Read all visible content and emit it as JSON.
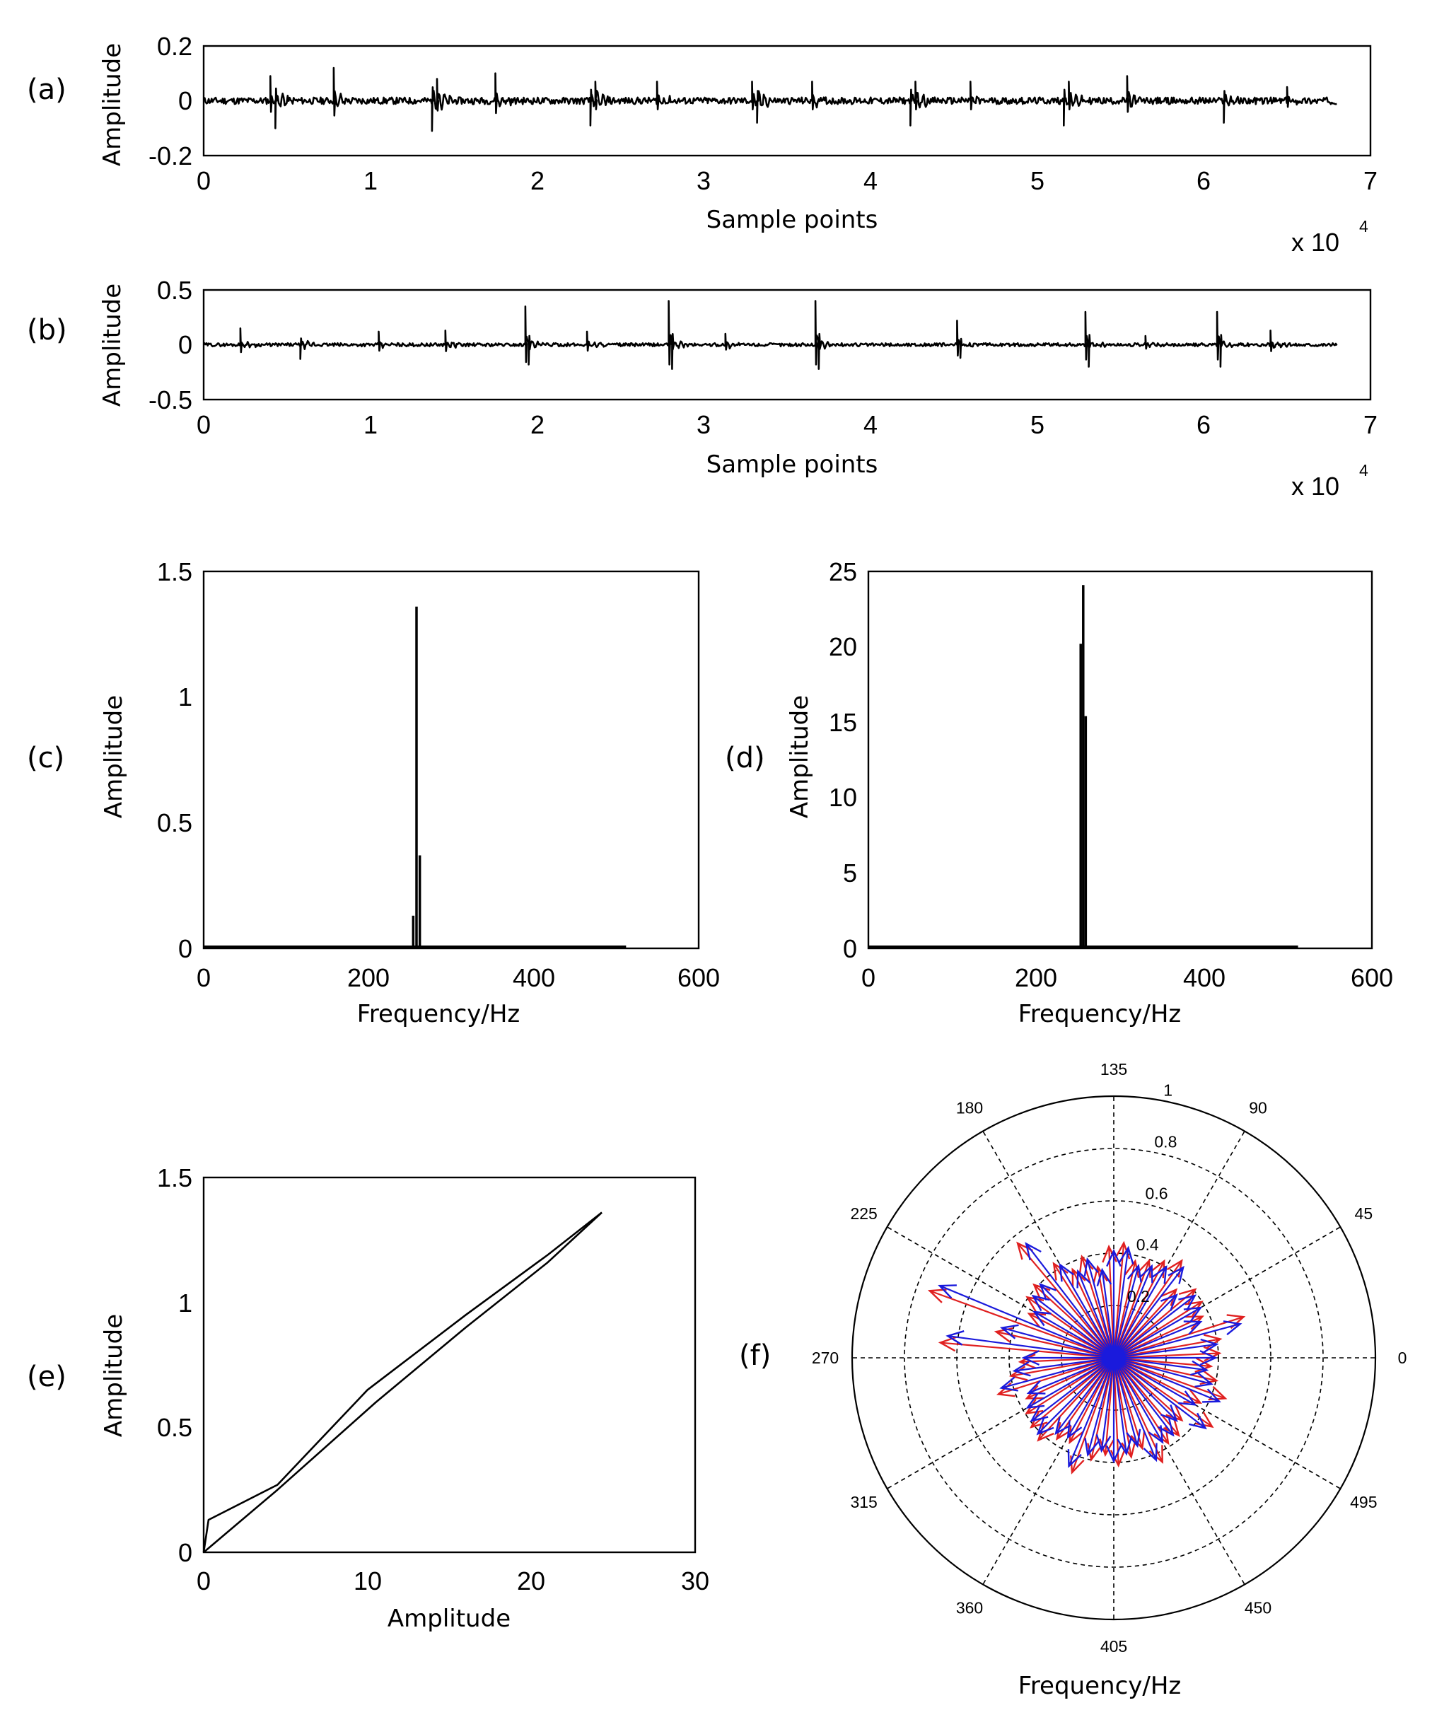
{
  "chart_data": [
    {
      "id": "a",
      "panel_label": "(a)",
      "type": "line",
      "title": "",
      "xlabel": "Sample points",
      "ylabel": "Amplitude",
      "xlim": [
        0,
        7
      ],
      "ylim": [
        -0.2,
        0.2
      ],
      "xticks": [
        "0",
        "1",
        "2",
        "3",
        "4",
        "5",
        "6",
        "7"
      ],
      "yticks": [
        "-0.2",
        "0",
        "0.2"
      ],
      "x_multiplier": "x 10",
      "x_exponent": "4",
      "x_end": 6.8,
      "spikes": [
        {
          "x": 0.4,
          "y": 0.09
        },
        {
          "x": 0.43,
          "y": -0.1
        },
        {
          "x": 0.78,
          "y": 0.12
        },
        {
          "x": 1.37,
          "y": -0.11
        },
        {
          "x": 1.4,
          "y": 0.08
        },
        {
          "x": 1.75,
          "y": 0.1
        },
        {
          "x": 2.32,
          "y": -0.09
        },
        {
          "x": 2.35,
          "y": 0.07
        },
        {
          "x": 2.72,
          "y": 0.07
        },
        {
          "x": 3.29,
          "y": 0.07
        },
        {
          "x": 3.32,
          "y": -0.08
        },
        {
          "x": 3.65,
          "y": 0.07
        },
        {
          "x": 4.24,
          "y": -0.09
        },
        {
          "x": 4.27,
          "y": 0.07
        },
        {
          "x": 4.6,
          "y": 0.07
        },
        {
          "x": 5.16,
          "y": -0.09
        },
        {
          "x": 5.19,
          "y": 0.07
        },
        {
          "x": 5.54,
          "y": 0.09
        },
        {
          "x": 6.12,
          "y": -0.08
        },
        {
          "x": 6.5,
          "y": 0.05
        }
      ]
    },
    {
      "id": "b",
      "panel_label": "(b)",
      "type": "line",
      "title": "",
      "xlabel": "Sample points",
      "ylabel": "Amplitude",
      "xlim": [
        0,
        7
      ],
      "ylim": [
        -0.5,
        0.5
      ],
      "xticks": [
        "0",
        "1",
        "2",
        "3",
        "4",
        "5",
        "6",
        "7"
      ],
      "yticks": [
        "-0.5",
        "0",
        "0.5"
      ],
      "x_multiplier": "x 10",
      "x_exponent": "4",
      "x_end": 6.8,
      "spikes": [
        {
          "x": 0.22,
          "y": 0.15
        },
        {
          "x": 0.58,
          "y": -0.13
        },
        {
          "x": 1.05,
          "y": 0.12
        },
        {
          "x": 1.45,
          "y": 0.13
        },
        {
          "x": 1.93,
          "y": 0.35
        },
        {
          "x": 1.95,
          "y": -0.18
        },
        {
          "x": 2.3,
          "y": 0.12
        },
        {
          "x": 2.79,
          "y": 0.4
        },
        {
          "x": 2.81,
          "y": -0.22
        },
        {
          "x": 3.13,
          "y": 0.1
        },
        {
          "x": 3.67,
          "y": 0.4
        },
        {
          "x": 3.69,
          "y": -0.22
        },
        {
          "x": 4.52,
          "y": 0.22
        },
        {
          "x": 4.54,
          "y": -0.12
        },
        {
          "x": 5.29,
          "y": 0.3
        },
        {
          "x": 5.31,
          "y": -0.2
        },
        {
          "x": 5.65,
          "y": 0.08
        },
        {
          "x": 6.08,
          "y": 0.3
        },
        {
          "x": 6.1,
          "y": -0.2
        },
        {
          "x": 6.4,
          "y": 0.13
        }
      ]
    },
    {
      "id": "c",
      "panel_label": "(c)",
      "type": "bar",
      "title": "",
      "xlabel": "Frequency/Hz",
      "ylabel": "Amplitude",
      "xlim": [
        0,
        600
      ],
      "ylim": [
        0,
        1.5
      ],
      "xticks": [
        "0",
        "200",
        "400",
        "600"
      ],
      "yticks": [
        "0",
        "0.5",
        "1",
        "1.5"
      ],
      "baseline_end": 512,
      "peaks": [
        {
          "x": 254,
          "y": 0.13
        },
        {
          "x": 258,
          "y": 1.36
        },
        {
          "x": 262,
          "y": 0.37
        }
      ]
    },
    {
      "id": "d",
      "panel_label": "(d)",
      "type": "bar",
      "title": "",
      "xlabel": "Frequency/Hz",
      "ylabel": "Amplitude",
      "xlim": [
        0,
        600
      ],
      "ylim": [
        0,
        25
      ],
      "xticks": [
        "0",
        "200",
        "400",
        "600"
      ],
      "yticks": [
        "0",
        "5",
        "10",
        "15",
        "20",
        "25"
      ],
      "baseline_end": 512,
      "peaks": [
        {
          "x": 253,
          "y": 20.2
        },
        {
          "x": 256,
          "y": 24.1
        },
        {
          "x": 259,
          "y": 15.4
        }
      ]
    },
    {
      "id": "e",
      "panel_label": "(e)",
      "type": "line",
      "title": "",
      "xlabel": "Amplitude",
      "ylabel": "Amplitude",
      "xlim": [
        0,
        30
      ],
      "ylim": [
        0,
        1.5
      ],
      "xticks": [
        "0",
        "10",
        "20",
        "30"
      ],
      "yticks": [
        "0",
        "0.5",
        "1",
        "1.5"
      ],
      "series": [
        {
          "name": "upper",
          "x": [
            0,
            0.3,
            4.5,
            10,
            16,
            21,
            24.3
          ],
          "y": [
            0,
            0.13,
            0.27,
            0.65,
            0.95,
            1.19,
            1.36
          ]
        },
        {
          "name": "lower",
          "x": [
            0,
            4.5,
            10.5,
            16,
            21,
            24.3
          ],
          "y": [
            0,
            0.25,
            0.6,
            0.9,
            1.16,
            1.36
          ]
        }
      ]
    },
    {
      "id": "f",
      "panel_label": "(f)",
      "type": "polar",
      "title": "",
      "xlabel": "Frequency/Hz",
      "rlim": [
        0,
        1
      ],
      "rticks": [
        "0.2",
        "0.4",
        "0.6",
        "0.8",
        "1"
      ],
      "angle_labels": [
        {
          "label": "0",
          "deg": 0
        },
        {
          "label": "45",
          "deg": 30
        },
        {
          "label": "90",
          "deg": 60
        },
        {
          "label": "135",
          "deg": 90
        },
        {
          "label": "180",
          "deg": 120
        },
        {
          "label": "225",
          "deg": 150
        },
        {
          "label": "270",
          "deg": 180
        },
        {
          "label": "315",
          "deg": 210
        },
        {
          "label": "360",
          "deg": 240
        },
        {
          "label": "405",
          "deg": 270
        },
        {
          "label": "450",
          "deg": 300
        },
        {
          "label": "495",
          "deg": 330
        }
      ],
      "arrow_count": 48,
      "long_arrows": [
        {
          "deg": 160,
          "r": 0.72
        },
        {
          "deg": 170,
          "r": 0.64
        },
        {
          "deg": 125,
          "r": 0.55
        },
        {
          "deg": 15,
          "r": 0.5
        }
      ],
      "series": [
        {
          "name": "red",
          "color": "#e02020"
        },
        {
          "name": "blue",
          "color": "#1a1adc"
        }
      ]
    }
  ]
}
